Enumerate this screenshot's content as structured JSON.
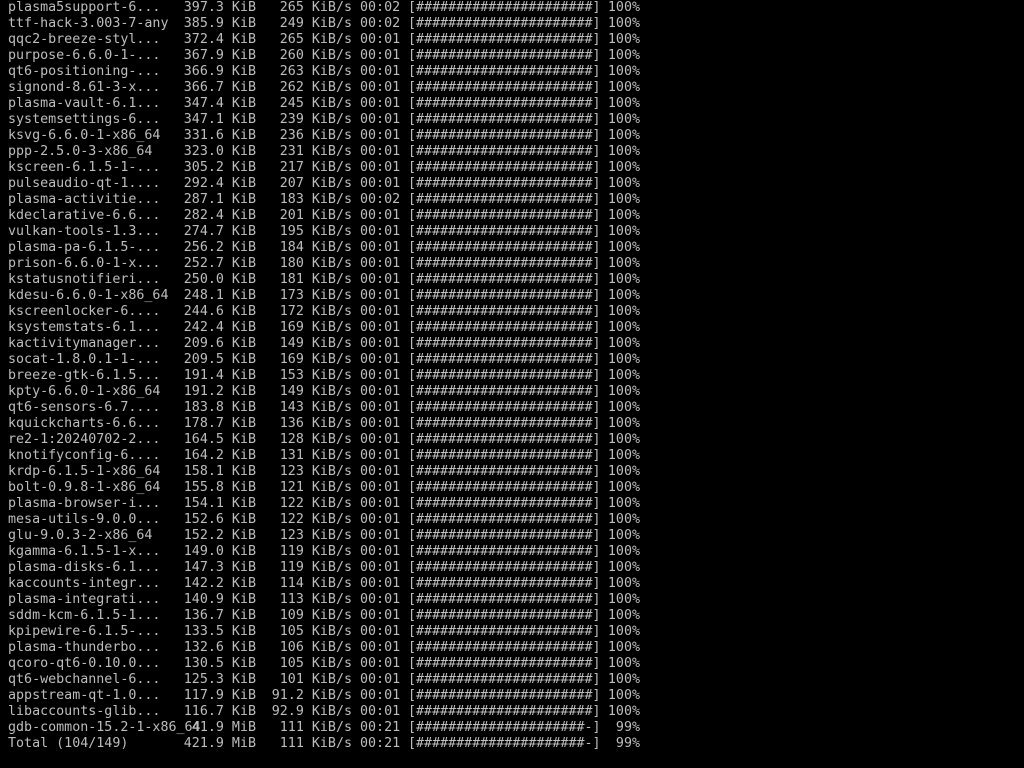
{
  "terminal": {
    "background": "#000000",
    "foreground": "#bdbdbd",
    "rows": [
      {
        "name": "plasma5support-6...",
        "size": "397.3 KiB",
        "speed": "265 KiB/s",
        "time": "00:02",
        "bar": "[######################]",
        "percent": "100%"
      },
      {
        "name": "ttf-hack-3.003-7-any",
        "size": "385.9 KiB",
        "speed": "249 KiB/s",
        "time": "00:02",
        "bar": "[######################]",
        "percent": "100%"
      },
      {
        "name": "qqc2-breeze-styl...",
        "size": "372.4 KiB",
        "speed": "265 KiB/s",
        "time": "00:01",
        "bar": "[######################]",
        "percent": "100%"
      },
      {
        "name": "purpose-6.6.0-1-...",
        "size": "367.9 KiB",
        "speed": "260 KiB/s",
        "time": "00:01",
        "bar": "[######################]",
        "percent": "100%"
      },
      {
        "name": "qt6-positioning-...",
        "size": "366.9 KiB",
        "speed": "263 KiB/s",
        "time": "00:01",
        "bar": "[######################]",
        "percent": "100%"
      },
      {
        "name": "signond-8.61-3-x...",
        "size": "366.7 KiB",
        "speed": "262 KiB/s",
        "time": "00:01",
        "bar": "[######################]",
        "percent": "100%"
      },
      {
        "name": "plasma-vault-6.1...",
        "size": "347.4 KiB",
        "speed": "245 KiB/s",
        "time": "00:01",
        "bar": "[######################]",
        "percent": "100%"
      },
      {
        "name": "systemsettings-6...",
        "size": "347.1 KiB",
        "speed": "239 KiB/s",
        "time": "00:01",
        "bar": "[######################]",
        "percent": "100%"
      },
      {
        "name": "ksvg-6.6.0-1-x86_64",
        "size": "331.6 KiB",
        "speed": "236 KiB/s",
        "time": "00:01",
        "bar": "[######################]",
        "percent": "100%"
      },
      {
        "name": "ppp-2.5.0-3-x86_64",
        "size": "323.0 KiB",
        "speed": "231 KiB/s",
        "time": "00:01",
        "bar": "[######################]",
        "percent": "100%"
      },
      {
        "name": "kscreen-6.1.5-1-...",
        "size": "305.2 KiB",
        "speed": "217 KiB/s",
        "time": "00:01",
        "bar": "[######################]",
        "percent": "100%"
      },
      {
        "name": "pulseaudio-qt-1....",
        "size": "292.4 KiB",
        "speed": "207 KiB/s",
        "time": "00:01",
        "bar": "[######################]",
        "percent": "100%"
      },
      {
        "name": "plasma-activitie...",
        "size": "287.1 KiB",
        "speed": "183 KiB/s",
        "time": "00:02",
        "bar": "[######################]",
        "percent": "100%"
      },
      {
        "name": "kdeclarative-6.6...",
        "size": "282.4 KiB",
        "speed": "201 KiB/s",
        "time": "00:01",
        "bar": "[######################]",
        "percent": "100%"
      },
      {
        "name": "vulkan-tools-1.3...",
        "size": "274.7 KiB",
        "speed": "195 KiB/s",
        "time": "00:01",
        "bar": "[######################]",
        "percent": "100%"
      },
      {
        "name": "plasma-pa-6.1.5-...",
        "size": "256.2 KiB",
        "speed": "184 KiB/s",
        "time": "00:01",
        "bar": "[######################]",
        "percent": "100%"
      },
      {
        "name": "prison-6.6.0-1-x...",
        "size": "252.7 KiB",
        "speed": "180 KiB/s",
        "time": "00:01",
        "bar": "[######################]",
        "percent": "100%"
      },
      {
        "name": "kstatusnotifieri...",
        "size": "250.0 KiB",
        "speed": "181 KiB/s",
        "time": "00:01",
        "bar": "[######################]",
        "percent": "100%"
      },
      {
        "name": "kdesu-6.6.0-1-x86_64",
        "size": "248.1 KiB",
        "speed": "173 KiB/s",
        "time": "00:01",
        "bar": "[######################]",
        "percent": "100%"
      },
      {
        "name": "kscreenlocker-6....",
        "size": "244.6 KiB",
        "speed": "172 KiB/s",
        "time": "00:01",
        "bar": "[######################]",
        "percent": "100%"
      },
      {
        "name": "ksystemstats-6.1...",
        "size": "242.4 KiB",
        "speed": "169 KiB/s",
        "time": "00:01",
        "bar": "[######################]",
        "percent": "100%"
      },
      {
        "name": "kactivitymanager...",
        "size": "209.6 KiB",
        "speed": "149 KiB/s",
        "time": "00:01",
        "bar": "[######################]",
        "percent": "100%"
      },
      {
        "name": "socat-1.8.0.1-1-...",
        "size": "209.5 KiB",
        "speed": "169 KiB/s",
        "time": "00:01",
        "bar": "[######################]",
        "percent": "100%"
      },
      {
        "name": "breeze-gtk-6.1.5...",
        "size": "191.4 KiB",
        "speed": "153 KiB/s",
        "time": "00:01",
        "bar": "[######################]",
        "percent": "100%"
      },
      {
        "name": "kpty-6.6.0-1-x86_64",
        "size": "191.2 KiB",
        "speed": "149 KiB/s",
        "time": "00:01",
        "bar": "[######################]",
        "percent": "100%"
      },
      {
        "name": "qt6-sensors-6.7....",
        "size": "183.8 KiB",
        "speed": "143 KiB/s",
        "time": "00:01",
        "bar": "[######################]",
        "percent": "100%"
      },
      {
        "name": "kquickcharts-6.6...",
        "size": "178.7 KiB",
        "speed": "136 KiB/s",
        "time": "00:01",
        "bar": "[######################]",
        "percent": "100%"
      },
      {
        "name": "re2-1:20240702-2...",
        "size": "164.5 KiB",
        "speed": "128 KiB/s",
        "time": "00:01",
        "bar": "[######################]",
        "percent": "100%"
      },
      {
        "name": "knotifyconfig-6....",
        "size": "164.2 KiB",
        "speed": "131 KiB/s",
        "time": "00:01",
        "bar": "[######################]",
        "percent": "100%"
      },
      {
        "name": "krdp-6.1.5-1-x86_64",
        "size": "158.1 KiB",
        "speed": "123 KiB/s",
        "time": "00:01",
        "bar": "[######################]",
        "percent": "100%"
      },
      {
        "name": "bolt-0.9.8-1-x86_64",
        "size": "155.8 KiB",
        "speed": "121 KiB/s",
        "time": "00:01",
        "bar": "[######################]",
        "percent": "100%"
      },
      {
        "name": "plasma-browser-i...",
        "size": "154.1 KiB",
        "speed": "122 KiB/s",
        "time": "00:01",
        "bar": "[######################]",
        "percent": "100%"
      },
      {
        "name": "mesa-utils-9.0.0...",
        "size": "152.6 KiB",
        "speed": "122 KiB/s",
        "time": "00:01",
        "bar": "[######################]",
        "percent": "100%"
      },
      {
        "name": "glu-9.0.3-2-x86_64",
        "size": "152.2 KiB",
        "speed": "123 KiB/s",
        "time": "00:01",
        "bar": "[######################]",
        "percent": "100%"
      },
      {
        "name": "kgamma-6.1.5-1-x...",
        "size": "149.0 KiB",
        "speed": "119 KiB/s",
        "time": "00:01",
        "bar": "[######################]",
        "percent": "100%"
      },
      {
        "name": "plasma-disks-6.1...",
        "size": "147.3 KiB",
        "speed": "119 KiB/s",
        "time": "00:01",
        "bar": "[######################]",
        "percent": "100%"
      },
      {
        "name": "kaccounts-integr...",
        "size": "142.2 KiB",
        "speed": "114 KiB/s",
        "time": "00:01",
        "bar": "[######################]",
        "percent": "100%"
      },
      {
        "name": "plasma-integrati...",
        "size": "140.9 KiB",
        "speed": "113 KiB/s",
        "time": "00:01",
        "bar": "[######################]",
        "percent": "100%"
      },
      {
        "name": "sddm-kcm-6.1.5-1...",
        "size": "136.7 KiB",
        "speed": "109 KiB/s",
        "time": "00:01",
        "bar": "[######################]",
        "percent": "100%"
      },
      {
        "name": "kpipewire-6.1.5-...",
        "size": "133.5 KiB",
        "speed": "105 KiB/s",
        "time": "00:01",
        "bar": "[######################]",
        "percent": "100%"
      },
      {
        "name": "plasma-thunderbo...",
        "size": "132.6 KiB",
        "speed": "106 KiB/s",
        "time": "00:01",
        "bar": "[######################]",
        "percent": "100%"
      },
      {
        "name": "qcoro-qt6-0.10.0...",
        "size": "130.5 KiB",
        "speed": "105 KiB/s",
        "time": "00:01",
        "bar": "[######################]",
        "percent": "100%"
      },
      {
        "name": "qt6-webchannel-6...",
        "size": "125.3 KiB",
        "speed": "101 KiB/s",
        "time": "00:01",
        "bar": "[######################]",
        "percent": "100%"
      },
      {
        "name": "appstream-qt-1.0...",
        "size": "117.9 KiB",
        "speed": "91.2 KiB/s",
        "time": "00:01",
        "bar": "[######################]",
        "percent": "100%"
      },
      {
        "name": "libaccounts-glib...",
        "size": "116.7 KiB",
        "speed": "92.9 KiB/s",
        "time": "00:01",
        "bar": "[######################]",
        "percent": "100%"
      },
      {
        "name": "gdb-common-15.2-1-x86_64",
        "size": "41.9 MiB",
        "speed": "111 KiB/s",
        "time": "00:21",
        "bar": "[#####################-]",
        "percent": "99%"
      },
      {
        "name": "Total (104/149)",
        "size": "421.9 MiB",
        "speed": "111 KiB/s",
        "time": "00:21",
        "bar": "[#####################-]",
        "percent": "99%"
      }
    ]
  }
}
